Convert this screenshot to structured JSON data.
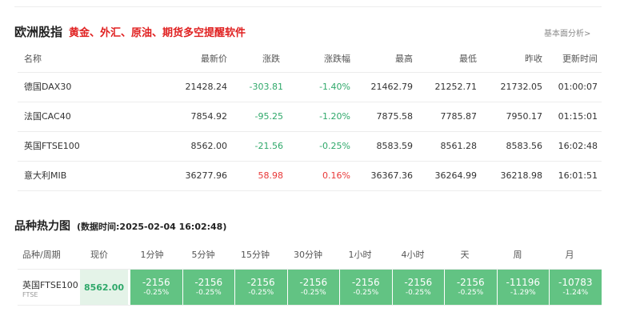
{
  "header": {
    "title": "欧洲股指",
    "promo": "黄金、外汇、原油、期货多空提醒软件",
    "more_link": "基本面分析>"
  },
  "index_table": {
    "columns": [
      "名称",
      "最新价",
      "涨跌",
      "涨跌幅",
      "最高",
      "最低",
      "昨收",
      "更新时间"
    ],
    "rows": [
      {
        "name": "德国DAX30",
        "price": "21428.24",
        "change": "-303.81",
        "change_pct": "-1.40%",
        "high": "21462.79",
        "low": "21252.71",
        "prev_close": "21732.05",
        "time": "01:00:07",
        "direction": "down"
      },
      {
        "name": "法国CAC40",
        "price": "7854.92",
        "change": "-95.25",
        "change_pct": "-1.20%",
        "high": "7875.58",
        "low": "7785.87",
        "prev_close": "7950.17",
        "time": "01:15:01",
        "direction": "down"
      },
      {
        "name": "英国FTSE100",
        "price": "8562.00",
        "change": "-21.56",
        "change_pct": "-0.25%",
        "high": "8583.59",
        "low": "8561.28",
        "prev_close": "8583.56",
        "time": "16:02:48",
        "direction": "down"
      },
      {
        "name": "意大利MIB",
        "price": "36277.96",
        "change": "58.98",
        "change_pct": "0.16%",
        "high": "36367.36",
        "low": "36264.99",
        "prev_close": "36218.98",
        "time": "16:01:51",
        "direction": "up"
      }
    ]
  },
  "heatmap": {
    "title": "品种热力图",
    "timestamp": "(数据时间:2025-02-04 16:02:48)",
    "columns": [
      "品种/周期",
      "现价",
      "1分钟",
      "5分钟",
      "15分钟",
      "30分钟",
      "1小时",
      "4小时",
      "天",
      "周",
      "月"
    ],
    "row": {
      "name": "英国FTSE100",
      "code": "FTSE",
      "price": "8562.00",
      "cells": [
        {
          "value": "-2156",
          "pct": "-0.25%"
        },
        {
          "value": "-2156",
          "pct": "-0.25%"
        },
        {
          "value": "-2156",
          "pct": "-0.25%"
        },
        {
          "value": "-2156",
          "pct": "-0.25%"
        },
        {
          "value": "-2156",
          "pct": "-0.25%"
        },
        {
          "value": "-2156",
          "pct": "-0.25%"
        },
        {
          "value": "-2156",
          "pct": "-0.25%"
        },
        {
          "value": "-11196",
          "pct": "-1.29%"
        },
        {
          "value": "-10783",
          "pct": "-1.24%"
        }
      ]
    }
  },
  "colors": {
    "up": "#e83838",
    "down": "#2fa86a",
    "heat_cell": "#62c383",
    "price_cell_bg": "#e4f3e8",
    "promo": "#e02020"
  }
}
